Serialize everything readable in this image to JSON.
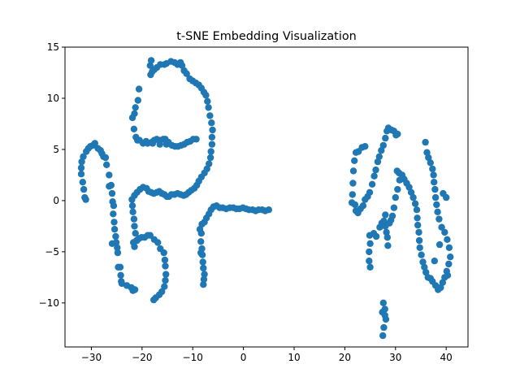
{
  "chart_data": {
    "type": "scatter",
    "title": "t-SNE Embedding Visualization",
    "xlabel": "",
    "ylabel": "",
    "xlim": [
      -35.2,
      44.3
    ],
    "ylim": [
      -14.3,
      15.0
    ],
    "xticks": [
      -30,
      -20,
      -10,
      0,
      10,
      20,
      30,
      40
    ],
    "yticks": [
      -10,
      -5,
      0,
      5,
      10,
      15
    ],
    "grid": false,
    "marker_color": "#1f77b4",
    "points": [
      [
        -32,
        2.6
      ],
      [
        -32,
        3.2
      ],
      [
        -31.9,
        3.8
      ],
      [
        -31.7,
        1.8
      ],
      [
        -31.6,
        4.3
      ],
      [
        -31.5,
        1.1
      ],
      [
        -31.3,
        0.3
      ],
      [
        -31.1,
        0.1
      ],
      [
        -31,
        4.8
      ],
      [
        -30.6,
        5.1
      ],
      [
        -30.2,
        5.3
      ],
      [
        -29.7,
        5.4
      ],
      [
        -29.3,
        5.6
      ],
      [
        -28.7,
        5.1
      ],
      [
        -28.2,
        4.9
      ],
      [
        -27.9,
        4.6
      ],
      [
        -27.6,
        4.3
      ],
      [
        -27.2,
        4.2
      ],
      [
        -27,
        3.5
      ],
      [
        -26.5,
        2.5
      ],
      [
        -26.1,
        1.5
      ],
      [
        -26.5,
        1.4
      ],
      [
        -25.9,
        0.7
      ],
      [
        -25.8,
        -0.1
      ],
      [
        -25.6,
        -0.5
      ],
      [
        -25.7,
        -1.3
      ],
      [
        -25.5,
        -2.1
      ],
      [
        -25.4,
        -2.8
      ],
      [
        -25.2,
        -3.5
      ],
      [
        -25.1,
        -4.1
      ],
      [
        -25.9,
        -4.2
      ],
      [
        -24.9,
        -4.6
      ],
      [
        -24.8,
        -5.1
      ],
      [
        -24.7,
        -6.5
      ],
      [
        -24.3,
        -6.5
      ],
      [
        -24.2,
        -7.3
      ],
      [
        -24.1,
        -7.9
      ],
      [
        -24,
        -8.1
      ],
      [
        -23,
        -8.3
      ],
      [
        -22.1,
        -8.5
      ],
      [
        -21.8,
        -8.8
      ],
      [
        -21.4,
        -8.7
      ],
      [
        -22,
        0.1
      ],
      [
        -21.9,
        -0.5
      ],
      [
        -21.8,
        -1.1
      ],
      [
        -21.6,
        -1.8
      ],
      [
        -21.5,
        -2.5
      ],
      [
        -21.3,
        -3.2
      ],
      [
        -21.1,
        -3.9
      ],
      [
        -21.7,
        -4.1
      ],
      [
        -21.5,
        -4.5
      ],
      [
        -21,
        -3.9
      ],
      [
        -20.6,
        -3.7
      ],
      [
        -20.1,
        -3.6
      ],
      [
        -19.5,
        -3.6
      ],
      [
        -18.9,
        -3.4
      ],
      [
        -18.4,
        -3.4
      ],
      [
        -17.6,
        -3.8
      ],
      [
        -16.9,
        -4.1
      ],
      [
        -16.4,
        -4.7
      ],
      [
        -15.7,
        -5.1
      ],
      [
        -15.5,
        -5.8
      ],
      [
        -15.4,
        -6.4
      ],
      [
        -15.3,
        -7.2
      ],
      [
        -15.4,
        -7.8
      ],
      [
        -15.6,
        -8.4
      ],
      [
        -16.1,
        -8.9
      ],
      [
        -16.6,
        -9.2
      ],
      [
        -17.3,
        -9.5
      ],
      [
        -17.7,
        -9.7
      ],
      [
        -21.5,
        0.5
      ],
      [
        -21,
        0.8
      ],
      [
        -20.4,
        1.1
      ],
      [
        -19.8,
        1.3
      ],
      [
        -19.1,
        1.2
      ],
      [
        -18.7,
        0.9
      ],
      [
        -18.2,
        0.8
      ],
      [
        -17.7,
        0.7
      ],
      [
        -17.1,
        0.8
      ],
      [
        -16.6,
        0.9
      ],
      [
        -16.1,
        0.7
      ],
      [
        -15.6,
        0.6
      ],
      [
        -15.1,
        0.4
      ],
      [
        -14.7,
        0.4
      ],
      [
        -14.2,
        0.6
      ],
      [
        -13.6,
        0.6
      ],
      [
        -13,
        0.7
      ],
      [
        -12.4,
        0.6
      ],
      [
        -11.8,
        0.5
      ],
      [
        -11.3,
        0.6
      ],
      [
        -10.8,
        0.8
      ],
      [
        -10.3,
        1.0
      ],
      [
        -9.7,
        1.2
      ],
      [
        -9.2,
        1.5
      ],
      [
        -8.8,
        1.9
      ],
      [
        -8.3,
        2.3
      ],
      [
        -7.7,
        2.7
      ],
      [
        -7.2,
        3.1
      ],
      [
        -6.8,
        3.6
      ],
      [
        -6.5,
        4.2
      ],
      [
        -6.4,
        4.8
      ],
      [
        -6.2,
        5.5
      ],
      [
        -6.2,
        6.2
      ],
      [
        -6.1,
        6.9
      ],
      [
        -6.3,
        7.6
      ],
      [
        -6.6,
        8.3
      ],
      [
        -6.9,
        9.1
      ],
      [
        -7.1,
        9.7
      ],
      [
        -7.4,
        10.3
      ],
      [
        -7.8,
        10.6
      ],
      [
        -8.3,
        11.0
      ],
      [
        -8.8,
        11.3
      ],
      [
        -9.4,
        11.5
      ],
      [
        -10,
        11.7
      ],
      [
        -10.6,
        11.9
      ],
      [
        -11.2,
        12.4
      ],
      [
        -11.7,
        12.7
      ],
      [
        -12.1,
        13.2
      ],
      [
        -12.4,
        13.5
      ],
      [
        -13,
        13.3
      ],
      [
        -13.6,
        13.5
      ],
      [
        -14.3,
        13.6
      ],
      [
        -15.2,
        13.4
      ],
      [
        -15.6,
        13.3
      ],
      [
        -16.4,
        13.3
      ],
      [
        -17.1,
        13.0
      ],
      [
        -17.6,
        12.8
      ],
      [
        -18,
        12.6
      ],
      [
        -18.3,
        12.3
      ],
      [
        -18.4,
        13.2
      ],
      [
        -18.2,
        13.7
      ],
      [
        -20.6,
        10.9
      ],
      [
        -20.8,
        9.8
      ],
      [
        -21.3,
        9.1
      ],
      [
        -21.5,
        8.5
      ],
      [
        -21.9,
        8.1
      ],
      [
        -21.6,
        7.0
      ],
      [
        -21.2,
        6.2
      ],
      [
        -20.9,
        5.9
      ],
      [
        -20.5,
        5.9
      ],
      [
        -19.8,
        5.6
      ],
      [
        -18.9,
        5.6
      ],
      [
        -18.1,
        5.7
      ],
      [
        -17.6,
        5.9
      ],
      [
        -17.1,
        6.0
      ],
      [
        -16.4,
        5.9
      ],
      [
        -15.8,
        6.0
      ],
      [
        -15.4,
        6.0
      ],
      [
        -14.8,
        5.7
      ],
      [
        -14.1,
        5.4
      ],
      [
        -13.5,
        5.3
      ],
      [
        -12.9,
        5.3
      ],
      [
        -12.3,
        5.4
      ],
      [
        -11.7,
        5.5
      ],
      [
        -11.1,
        5.7
      ],
      [
        -10.5,
        5.8
      ],
      [
        -9.9,
        6.0
      ],
      [
        -9.3,
        6.0
      ],
      [
        -15.2,
        5.5
      ],
      [
        -16.5,
        5.5
      ],
      [
        -17.9,
        5.6
      ],
      [
        -19.2,
        5.8
      ],
      [
        -8.2,
        -2.3
      ],
      [
        -8.3,
        -3.2
      ],
      [
        -8.4,
        -4.0
      ],
      [
        -8.2,
        -4.7
      ],
      [
        -8.1,
        -5.3
      ],
      [
        -8.0,
        -6.0
      ],
      [
        -7.9,
        -6.6
      ],
      [
        -7.7,
        -7.2
      ],
      [
        -7.8,
        -7.7
      ],
      [
        -7.9,
        -8.2
      ],
      [
        -8.4,
        -5.1
      ],
      [
        -8.6,
        -2.8
      ],
      [
        -7.7,
        -2.1
      ],
      [
        -7.3,
        -1.7
      ],
      [
        -6.8,
        -1.3
      ],
      [
        -6.4,
        -0.9
      ],
      [
        -5.9,
        -0.6
      ],
      [
        -5.3,
        -0.5
      ],
      [
        -4.7,
        -0.7
      ],
      [
        -4.1,
        -0.7
      ],
      [
        -3.4,
        -0.8
      ],
      [
        -2.7,
        -0.7
      ],
      [
        -2,
        -0.7
      ],
      [
        -1.4,
        -0.8
      ],
      [
        -0.8,
        -0.8
      ],
      [
        -0.1,
        -0.7
      ],
      [
        0.5,
        -0.8
      ],
      [
        1.1,
        -0.9
      ],
      [
        1.8,
        -0.9
      ],
      [
        2.4,
        -1.0
      ],
      [
        3.0,
        -0.9
      ],
      [
        3.7,
        -0.9
      ],
      [
        4.3,
        -1.0
      ],
      [
        5.0,
        -0.9
      ],
      [
        21.4,
        -0.2
      ],
      [
        21.5,
        0.6
      ],
      [
        21.6,
        1.7
      ],
      [
        21.7,
        2.9
      ],
      [
        21.9,
        3.9
      ],
      [
        22.2,
        4.7
      ],
      [
        22.7,
        4.8
      ],
      [
        23.4,
        5.2
      ],
      [
        24,
        5.3
      ],
      [
        22,
        -0.4
      ],
      [
        22.2,
        -1.0
      ],
      [
        22.6,
        -1.2
      ],
      [
        23.1,
        -0.8
      ],
      [
        23.6,
        -0.5
      ],
      [
        24,
        0.1
      ],
      [
        24.5,
        0.4
      ],
      [
        24.9,
        0.8
      ],
      [
        25.4,
        1.6
      ],
      [
        25.8,
        2.4
      ],
      [
        26.1,
        3.0
      ],
      [
        26.5,
        3.8
      ],
      [
        26.8,
        4.3
      ],
      [
        27.2,
        4.9
      ],
      [
        27.6,
        5.4
      ],
      [
        28,
        6.1
      ],
      [
        28.3,
        6.8
      ],
      [
        28.6,
        7.1
      ],
      [
        29.2,
        6.9
      ],
      [
        29.7,
        6.8
      ],
      [
        30.1,
        6.4
      ],
      [
        30.4,
        6.5
      ],
      [
        24.9,
        -3.4
      ],
      [
        25,
        -4.2
      ],
      [
        24.8,
        -5.0
      ],
      [
        24.8,
        -5.9
      ],
      [
        25,
        -6.5
      ],
      [
        25.7,
        -3.2
      ],
      [
        26.2,
        -3.5
      ],
      [
        26.9,
        -2.6
      ],
      [
        27.3,
        -2.2
      ],
      [
        27.7,
        -2.0
      ],
      [
        28,
        -2.5
      ],
      [
        28.2,
        -3.1
      ],
      [
        28.4,
        -3.6
      ],
      [
        28.5,
        -4.4
      ],
      [
        28.8,
        -2.2
      ],
      [
        29.1,
        -1.9
      ],
      [
        29.4,
        -1.5
      ],
      [
        29.7,
        -0.7
      ],
      [
        30,
        0.3
      ],
      [
        30.4,
        1.1
      ],
      [
        30.8,
        2.0
      ],
      [
        28,
        -1.4
      ],
      [
        27.6,
        -10.0
      ],
      [
        27.9,
        -10.6
      ],
      [
        28.1,
        -11.6
      ],
      [
        27.7,
        -12.4
      ],
      [
        27.5,
        -13.2
      ],
      [
        27.4,
        -10.9
      ],
      [
        27.9,
        -11.2
      ],
      [
        30.3,
        2.9
      ],
      [
        30.7,
        2.7
      ],
      [
        31.3,
        2.5
      ],
      [
        31.7,
        2.1
      ],
      [
        32.2,
        1.7
      ],
      [
        32.7,
        1.3
      ],
      [
        33.1,
        0.8
      ],
      [
        33.5,
        0.3
      ],
      [
        33.9,
        -0.3
      ],
      [
        34.2,
        -0.9
      ],
      [
        34.3,
        -1.7
      ],
      [
        34.4,
        -2.4
      ],
      [
        34.6,
        -3.1
      ],
      [
        34.7,
        -3.9
      ],
      [
        34.8,
        -4.6
      ],
      [
        35.1,
        -5.3
      ],
      [
        35.4,
        -6.0
      ],
      [
        35.7,
        -6.5
      ],
      [
        36,
        -7.0
      ],
      [
        36.4,
        -7.5
      ],
      [
        36.9,
        -7.6
      ],
      [
        37.3,
        -7.9
      ],
      [
        37.9,
        -8.3
      ],
      [
        38.4,
        -8.7
      ],
      [
        38.9,
        -8.5
      ],
      [
        39.3,
        -8.0
      ],
      [
        39.7,
        -7.5
      ],
      [
        40.1,
        -6.9
      ],
      [
        40.5,
        -6.2
      ],
      [
        40.8,
        -5.5
      ],
      [
        40.6,
        -4.6
      ],
      [
        40.2,
        -3.8
      ],
      [
        39.7,
        -3.1
      ],
      [
        39.1,
        -2.6
      ],
      [
        38.6,
        -1.8
      ],
      [
        38.3,
        -1.1
      ],
      [
        38.1,
        -0.4
      ],
      [
        37.9,
        0.3
      ],
      [
        37.8,
        1.1
      ],
      [
        37.6,
        1.8
      ],
      [
        37.5,
        2.5
      ],
      [
        37.3,
        3.1
      ],
      [
        36.9,
        3.7
      ],
      [
        36.5,
        4.2
      ],
      [
        36.2,
        4.7
      ],
      [
        35.9,
        5.7
      ],
      [
        40.3,
        -7.3
      ],
      [
        39.4,
        0.7
      ],
      [
        40,
        0.3
      ],
      [
        38.7,
        -4.3
      ],
      [
        37.7,
        -5.9
      ]
    ]
  }
}
